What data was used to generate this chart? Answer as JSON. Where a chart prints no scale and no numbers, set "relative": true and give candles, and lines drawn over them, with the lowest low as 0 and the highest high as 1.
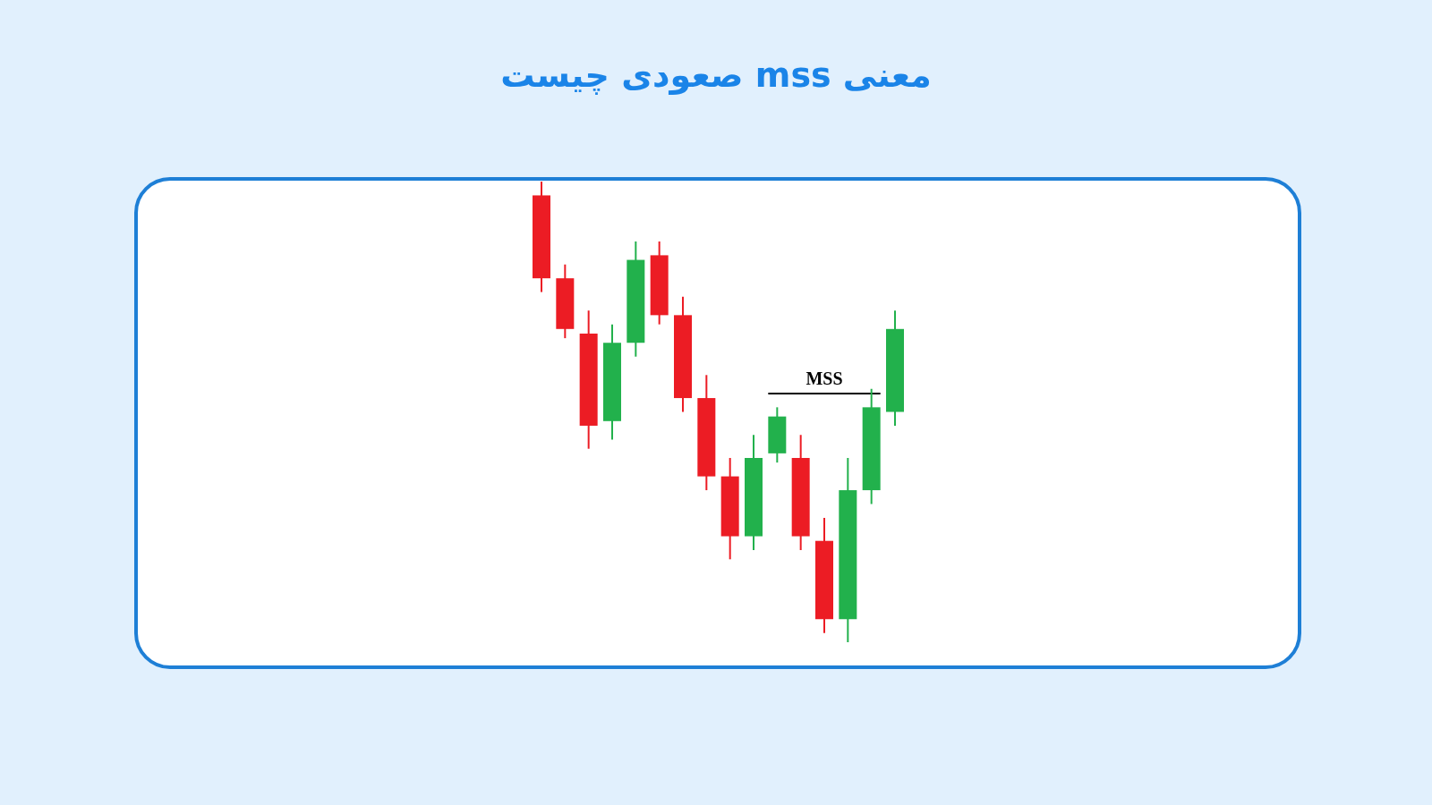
{
  "chart_data": {
    "type": "candlestick",
    "title": "معنی mss صعودی چیست",
    "relative": true,
    "categories": [
      null,
      null,
      null,
      null,
      null,
      null,
      null,
      null,
      null,
      null,
      null,
      null,
      null,
      null,
      null,
      null
    ],
    "ohlc": [
      [
        0.97,
        1.0,
        0.76,
        0.79
      ],
      [
        0.79,
        0.82,
        0.66,
        0.68
      ],
      [
        0.67,
        0.72,
        0.42,
        0.47
      ],
      [
        0.48,
        0.69,
        0.44,
        0.65
      ],
      [
        0.65,
        0.87,
        0.62,
        0.83
      ],
      [
        0.84,
        0.87,
        0.69,
        0.71
      ],
      [
        0.71,
        0.75,
        0.5,
        0.53
      ],
      [
        0.53,
        0.58,
        0.33,
        0.36
      ],
      [
        0.36,
        0.4,
        0.18,
        0.23
      ],
      [
        0.23,
        0.45,
        0.2,
        0.4
      ],
      [
        0.41,
        0.51,
        0.39,
        0.49
      ],
      [
        0.4,
        0.45,
        0.2,
        0.23
      ],
      [
        0.22,
        0.27,
        0.02,
        0.05
      ],
      [
        0.05,
        0.4,
        0.0,
        0.33
      ],
      [
        0.33,
        0.55,
        0.3,
        0.51
      ],
      [
        0.5,
        0.72,
        0.47,
        0.68
      ]
    ],
    "colors": [
      "#ec1c24",
      "#ec1c24",
      "#ec1c24",
      "#22b14c",
      "#22b14c",
      "#ec1c24",
      "#ec1c24",
      "#ec1c24",
      "#ec1c24",
      "#22b14c",
      "#22b14c",
      "#ec1c24",
      "#ec1c24",
      "#22b14c",
      "#22b14c",
      "#22b14c"
    ],
    "ref_lines": [
      {
        "axis": "y",
        "value": 0.54,
        "label": "MSS",
        "color": "#000000"
      }
    ]
  }
}
